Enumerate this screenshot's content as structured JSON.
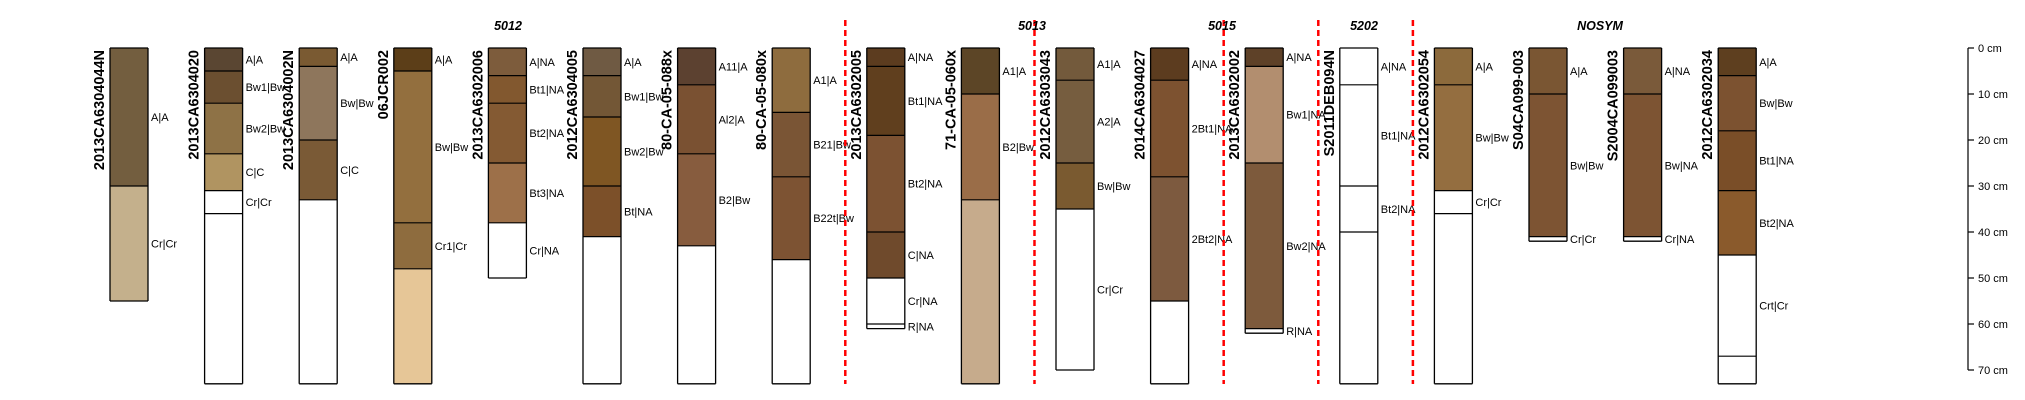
{
  "figure": {
    "depth_unit": "cm",
    "depth_axis": {
      "min": 0,
      "max": 70,
      "ticks": [
        0,
        10,
        20,
        30,
        40,
        50,
        60,
        70
      ],
      "tick_labels": [
        "0 cm",
        "10 cm",
        "20 cm",
        "30 cm",
        "40 cm",
        "50 cm",
        "60 cm",
        "70 cm"
      ]
    },
    "group_labels": [
      {
        "label": "5012",
        "after_profile": 7
      },
      {
        "label": "5013",
        "after_profile": 11
      },
      {
        "label": "5015",
        "after_profile": 13
      },
      {
        "label": "5202",
        "after_profile": 14
      },
      {
        "label": "NOSYM",
        "after_profile": 18
      }
    ],
    "divider_color": "#ff0000",
    "divider_after_profiles": [
      8,
      10,
      12,
      13,
      14
    ]
  },
  "profiles": [
    {
      "id": "2013CA6304044N",
      "bottom": 55,
      "horizons": [
        {
          "top": 0,
          "bottom": 30,
          "label": "A|A",
          "color": "#735e3f"
        },
        {
          "top": 30,
          "bottom": 55,
          "label": "Cr|Cr",
          "color": "#c4b08c"
        }
      ]
    },
    {
      "id": "2013CA6304020",
      "bottom": 73,
      "horizons": [
        {
          "top": 0,
          "bottom": 5,
          "label": "A|A",
          "color": "#5a4632"
        },
        {
          "top": 5,
          "bottom": 12,
          "label": "Bw1|Bw",
          "color": "#6b4f30"
        },
        {
          "top": 12,
          "bottom": 23,
          "label": "Bw2|Bw",
          "color": "#8e7246"
        },
        {
          "top": 23,
          "bottom": 31,
          "label": "C|C",
          "color": "#b09461"
        },
        {
          "top": 31,
          "bottom": 36,
          "label": "Cr|Cr",
          "color": "#ffffff"
        },
        {
          "top": 36,
          "bottom": 73,
          "label": "",
          "color": "#ffffff"
        }
      ]
    },
    {
      "id": "2013CA6304002N",
      "bottom": 73,
      "horizons": [
        {
          "top": 0,
          "bottom": 4,
          "label": "A|A",
          "color": "#7a5a32"
        },
        {
          "top": 4,
          "bottom": 20,
          "label": "Bw|Bw",
          "color": "#8e765c"
        },
        {
          "top": 20,
          "bottom": 33,
          "label": "C|C",
          "color": "#7a5a36"
        },
        {
          "top": 33,
          "bottom": 73,
          "label": "",
          "color": "#ffffff"
        }
      ]
    },
    {
      "id": "06JCR002",
      "bottom": 73,
      "horizons": [
        {
          "top": 0,
          "bottom": 5,
          "label": "A|A",
          "color": "#5c3e18"
        },
        {
          "top": 5,
          "bottom": 38,
          "label": "Bw|Bw",
          "color": "#936f3e"
        },
        {
          "top": 38,
          "bottom": 48,
          "label": "Cr1|Cr",
          "color": "#8e6c3e"
        },
        {
          "top": 48,
          "bottom": 73,
          "label": "",
          "color": "#e6c697"
        }
      ]
    },
    {
      "id": "2013CA6302006",
      "bottom": 50,
      "horizons": [
        {
          "top": 0,
          "bottom": 6,
          "label": "A|NA",
          "color": "#7d5c3c"
        },
        {
          "top": 6,
          "bottom": 12,
          "label": "Bt1|NA",
          "color": "#82582f"
        },
        {
          "top": 12,
          "bottom": 25,
          "label": "Bt2|NA",
          "color": "#845a33"
        },
        {
          "top": 25,
          "bottom": 38,
          "label": "Bt3|NA",
          "color": "#9d7049"
        },
        {
          "top": 38,
          "bottom": 50,
          "label": "Cr|NA",
          "color": "#ffffff"
        }
      ]
    },
    {
      "id": "2012CA6304005",
      "bottom": 73,
      "horizons": [
        {
          "top": 0,
          "bottom": 6,
          "label": "A|A",
          "color": "#6f5a43"
        },
        {
          "top": 6,
          "bottom": 15,
          "label": "Bw1|Bw",
          "color": "#735736"
        },
        {
          "top": 15,
          "bottom": 30,
          "label": "Bw2|Bw",
          "color": "#7f5623"
        },
        {
          "top": 30,
          "bottom": 41,
          "label": "Bt|NA",
          "color": "#7c5029"
        },
        {
          "top": 41,
          "bottom": 73,
          "label": "",
          "color": "#ffffff"
        }
      ]
    },
    {
      "id": "80-CA-05-088x",
      "bottom": 73,
      "horizons": [
        {
          "top": 0,
          "bottom": 8,
          "label": "A11|A",
          "color": "#5c4130"
        },
        {
          "top": 8,
          "bottom": 23,
          "label": "Al2|A",
          "color": "#7a5132"
        },
        {
          "top": 23,
          "bottom": 43,
          "label": "B2|Bw",
          "color": "#875c3e"
        },
        {
          "top": 43,
          "bottom": 73,
          "label": "",
          "color": "#ffffff"
        }
      ]
    },
    {
      "id": "80-CA-05-080x",
      "bottom": 73,
      "horizons": [
        {
          "top": 0,
          "bottom": 14,
          "label": "A1|A",
          "color": "#8e6c3e"
        },
        {
          "top": 14,
          "bottom": 28,
          "label": "B21|Bw",
          "color": "#7a5535"
        },
        {
          "top": 28,
          "bottom": 46,
          "label": "B22t|Bw",
          "color": "#7d5333"
        },
        {
          "top": 46,
          "bottom": 73,
          "label": "",
          "color": "#ffffff"
        }
      ]
    },
    {
      "id": "2013CA6302005",
      "bottom": 61,
      "horizons": [
        {
          "top": 0,
          "bottom": 4,
          "label": "A|NA",
          "color": "#5c3c1f"
        },
        {
          "top": 4,
          "bottom": 19,
          "label": "Bt1|NA",
          "color": "#603f1e"
        },
        {
          "top": 19,
          "bottom": 40,
          "label": "Bt2|NA",
          "color": "#7c5232"
        },
        {
          "top": 40,
          "bottom": 50,
          "label": "C|NA",
          "color": "#6f4a2c"
        },
        {
          "top": 50,
          "bottom": 60,
          "label": "Cr|NA",
          "color": "#ffffff"
        },
        {
          "top": 60,
          "bottom": 61,
          "label": "R|NA",
          "color": "#ffffff"
        }
      ]
    },
    {
      "id": "71-CA-05-060x",
      "bottom": 73,
      "horizons": [
        {
          "top": 0,
          "bottom": 10,
          "label": "A1|A",
          "color": "#5c4526"
        },
        {
          "top": 10,
          "bottom": 33,
          "label": "B2|Bw",
          "color": "#9a6d48"
        },
        {
          "top": 33,
          "bottom": 73,
          "label": "",
          "color": "#c6ab8c"
        }
      ]
    },
    {
      "id": "2012CA6303043",
      "bottom": 70,
      "horizons": [
        {
          "top": 0,
          "bottom": 7,
          "label": "A1|A",
          "color": "#735a3c"
        },
        {
          "top": 7,
          "bottom": 25,
          "label": "A2|A",
          "color": "#765d3f"
        },
        {
          "top": 25,
          "bottom": 35,
          "label": "Bw|Bw",
          "color": "#7a5a30"
        },
        {
          "top": 35,
          "bottom": 70,
          "label": "Cr|Cr",
          "color": "#ffffff"
        }
      ]
    },
    {
      "id": "2014CA6304027",
      "bottom": 73,
      "horizons": [
        {
          "top": 0,
          "bottom": 7,
          "label": "A|NA",
          "color": "#5c3c1f"
        },
        {
          "top": 7,
          "bottom": 28,
          "label": "2Bt1|NA",
          "color": "#7d5230"
        },
        {
          "top": 28,
          "bottom": 55,
          "label": "2Bt2|NA",
          "color": "#7d5a3f"
        },
        {
          "top": 55,
          "bottom": 73,
          "label": "",
          "color": "#ffffff"
        }
      ]
    },
    {
      "id": "2013CA6302002",
      "bottom": 62,
      "horizons": [
        {
          "top": 0,
          "bottom": 4,
          "label": "A|NA",
          "color": "#5e4128"
        },
        {
          "top": 4,
          "bottom": 25,
          "label": "Bw1|NA",
          "color": "#b28e6f"
        },
        {
          "top": 25,
          "bottom": 61,
          "label": "Bw2|NA",
          "color": "#7d5a3c"
        },
        {
          "top": 61,
          "bottom": 62,
          "label": "R|NA",
          "color": "#ffffff"
        }
      ]
    },
    {
      "id": "S2011DEB094N",
      "bottom": 73,
      "horizons": [
        {
          "top": 0,
          "bottom": 8,
          "label": "A|NA",
          "color": "#ffffff"
        },
        {
          "top": 8,
          "bottom": 30,
          "label": "Bt1|NA",
          "color": "#ffffff"
        },
        {
          "top": 30,
          "bottom": 40,
          "label": "Bt2|NA",
          "color": "#ffffff"
        },
        {
          "top": 40,
          "bottom": 73,
          "label": "",
          "color": "#ffffff"
        }
      ]
    },
    {
      "id": "2012CA6302054",
      "bottom": 73,
      "horizons": [
        {
          "top": 0,
          "bottom": 8,
          "label": "A|A",
          "color": "#8c6a3c"
        },
        {
          "top": 8,
          "bottom": 31,
          "label": "Bw|Bw",
          "color": "#946e40"
        },
        {
          "top": 31,
          "bottom": 36,
          "label": "Cr|Cr",
          "color": "#ffffff"
        },
        {
          "top": 36,
          "bottom": 73,
          "label": "",
          "color": "#ffffff"
        }
      ]
    },
    {
      "id": "S04CA099-003",
      "bottom": 42,
      "horizons": [
        {
          "top": 0,
          "bottom": 10,
          "label": "A|A",
          "color": "#7a5633"
        },
        {
          "top": 10,
          "bottom": 41,
          "label": "Bw|Bw",
          "color": "#7d5433"
        },
        {
          "top": 41,
          "bottom": 42,
          "label": "Cr|Cr",
          "color": "#ffffff"
        }
      ]
    },
    {
      "id": "S2004CA099003",
      "bottom": 42,
      "horizons": [
        {
          "top": 0,
          "bottom": 10,
          "label": "A|NA",
          "color": "#7a5a3a"
        },
        {
          "top": 10,
          "bottom": 41,
          "label": "Bw|NA",
          "color": "#7d5433"
        },
        {
          "top": 41,
          "bottom": 42,
          "label": "Cr|NA",
          "color": "#ffffff"
        }
      ]
    },
    {
      "id": "2012CA6302034",
      "bottom": 73,
      "horizons": [
        {
          "top": 0,
          "bottom": 6,
          "label": "A|A",
          "color": "#5e3f1f"
        },
        {
          "top": 6,
          "bottom": 18,
          "label": "Bw|Bw",
          "color": "#7c5230"
        },
        {
          "top": 18,
          "bottom": 31,
          "label": "Bt1|NA",
          "color": "#7a4e28"
        },
        {
          "top": 31,
          "bottom": 45,
          "label": "Bt2|NA",
          "color": "#8a5a2c"
        },
        {
          "top": 45,
          "bottom": 67,
          "label": "Crt|Cr",
          "color": "#ffffff"
        },
        {
          "top": 67,
          "bottom": 73,
          "label": "",
          "color": "#ffffff"
        }
      ]
    }
  ]
}
